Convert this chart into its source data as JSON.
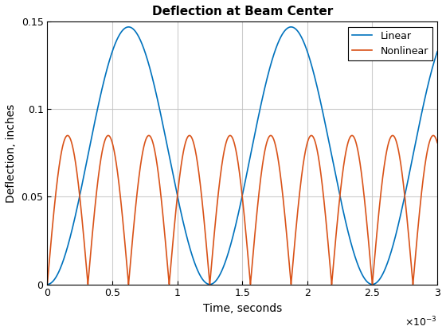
{
  "title": "Deflection at Beam Center",
  "xlabel": "Time, seconds",
  "ylabel": "Deflection, inches",
  "xlim": [
    0,
    0.003
  ],
  "ylim": [
    0,
    0.15
  ],
  "linear_amplitude": 0.147,
  "linear_freq_hz": 800.0,
  "nonlinear_amplitude": 0.085,
  "nonlinear_freq_hz": 1600.0,
  "linear_color": "#0072BD",
  "nonlinear_color": "#D95319",
  "linear_label": "Linear",
  "nonlinear_label": "Nonlinear",
  "linewidth": 1.2,
  "grid_color": "#C0C0C0",
  "background_color": "#FFFFFF",
  "xtick_vals": [
    0,
    0.0005,
    0.001,
    0.0015,
    0.002,
    0.0025,
    0.003
  ],
  "xtick_labels": [
    "0",
    "0.5",
    "1",
    "1.5",
    "2",
    "2.5",
    "3"
  ],
  "ytick_vals": [
    0,
    0.05,
    0.1,
    0.15
  ],
  "ytick_labels": [
    "0",
    "0.05",
    "0.1",
    "0.15"
  ],
  "title_fontsize": 11,
  "label_fontsize": 10,
  "tick_fontsize": 9,
  "legend_fontsize": 9
}
